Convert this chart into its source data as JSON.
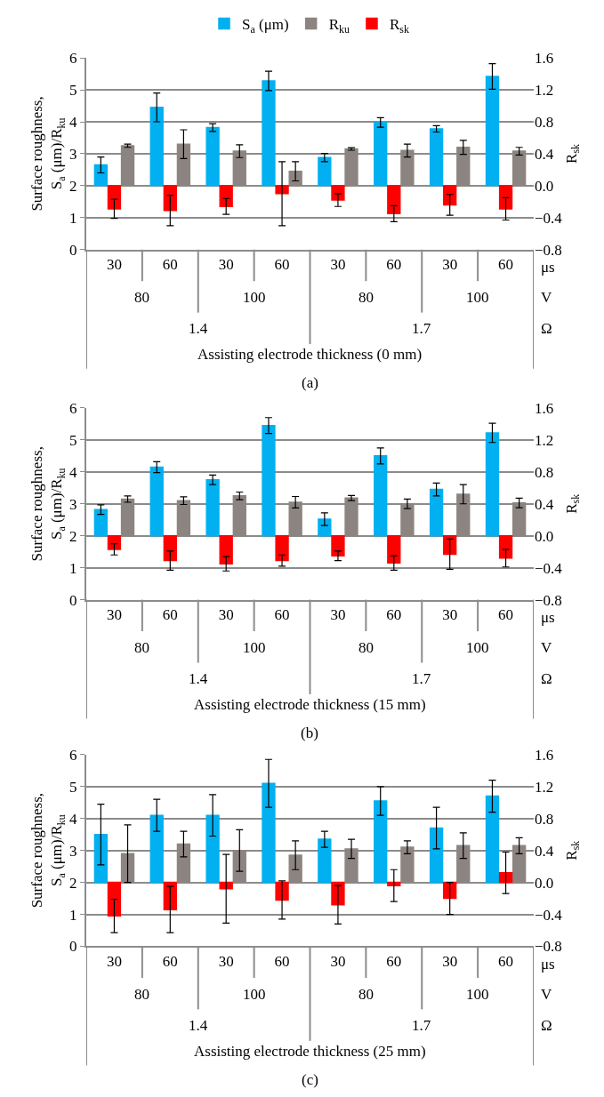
{
  "chart_data": [
    {
      "type": "bar",
      "legend": "top",
      "grid": "y",
      "xlabel": "Assisting electrode thickness (0 mm)",
      "ylabel": "Surface roughness,\nS$_{a}$ (μm)/R$_{ku}$",
      "y2label": "R$_{sk}$",
      "categories": [
        "30",
        "60",
        "30",
        "60",
        "30",
        "60",
        "30",
        "60"
      ],
      "ylim": [
        0,
        6
      ],
      "yticks": [
        0,
        1,
        2,
        3,
        4,
        5,
        6
      ],
      "y2lim": [
        -0.8,
        1.6
      ],
      "y2ticks": [
        {
          "value": -0.8,
          "label": "−0.8"
        },
        {
          "value": -0.4,
          "label": "−0.4"
        },
        {
          "value": 0,
          "label": "0.0"
        },
        0.4,
        0.8,
        1.2,
        1.6
      ],
      "series": [
        {
          "name": "S$_{a}$ (μm)",
          "color": "#00b0f0",
          "base": [
            2,
            2,
            2,
            2,
            2,
            2,
            2,
            2
          ],
          "values": [
            0.65,
            2.45,
            1.82,
            3.28,
            0.88,
            1.98,
            1.78,
            3.42
          ],
          "errors": [
            0.25,
            0.45,
            0.12,
            0.3,
            0.13,
            0.15,
            0.1,
            0.4
          ]
        },
        {
          "name": "R$_{ku}$",
          "color": "#8c8480",
          "base": [
            2,
            2,
            2,
            2,
            2,
            2,
            2,
            2
          ],
          "values": [
            1.25,
            1.3,
            1.08,
            0.45,
            1.15,
            1.1,
            1.2,
            1.08
          ],
          "errors": [
            0.05,
            0.45,
            0.2,
            0.3,
            0.04,
            0.2,
            0.22,
            0.12
          ]
        },
        {
          "name": "R$_{sk}$",
          "color": "#ff0000",
          "axis": "y2",
          "values": [
            -0.29,
            -0.31,
            -0.26,
            -0.1,
            -0.18,
            -0.35,
            -0.24,
            -0.29
          ],
          "errors": [
            0.12,
            0.19,
            0.1,
            0.4,
            0.08,
            0.1,
            0.13,
            0.14
          ]
        }
      ],
      "annotations": [
        "80",
        "100",
        "80",
        "100",
        "1.4",
        "1.7",
        "μs",
        "V",
        "Ω",
        "(a)"
      ]
    },
    {
      "type": "bar",
      "grid": "y",
      "xlabel": "Assisting electrode thickness (15 mm)",
      "ylabel": "Surface roughness,\nS$_{a}$ (μm)/R$_{ku}$",
      "y2label": "R$_{sk}$",
      "categories": [
        "30",
        "60",
        "30",
        "60",
        "30",
        "60",
        "30",
        "60"
      ],
      "ylim": [
        0,
        6
      ],
      "yticks": [
        0,
        1,
        2,
        3,
        4,
        5,
        6
      ],
      "y2lim": [
        -0.8,
        1.6
      ],
      "y2ticks": [
        {
          "value": -0.8,
          "label": "−0.8"
        },
        {
          "value": -0.4,
          "label": "−0.4"
        },
        {
          "value": 0,
          "label": "0.0"
        },
        0.4,
        0.8,
        1.2,
        1.6
      ],
      "series": [
        {
          "color": "#00b0f0",
          "base": [
            2,
            2,
            2,
            2,
            2,
            2,
            2,
            2
          ],
          "values": [
            0.82,
            2.15,
            1.75,
            3.45,
            0.52,
            2.5,
            1.45,
            3.22
          ],
          "errors": [
            0.15,
            0.17,
            0.15,
            0.25,
            0.2,
            0.25,
            0.2,
            0.3
          ]
        },
        {
          "color": "#8c8480",
          "base": [
            2,
            2,
            2,
            2,
            2,
            2,
            2,
            2
          ],
          "values": [
            1.15,
            1.1,
            1.25,
            1.05,
            1.18,
            1.0,
            1.3,
            1.03
          ],
          "errors": [
            0.1,
            0.12,
            0.12,
            0.18,
            0.08,
            0.15,
            0.3,
            0.15
          ]
        },
        {
          "color": "#ff0000",
          "axis": "y2",
          "values": [
            -0.17,
            -0.31,
            -0.35,
            -0.31,
            -0.25,
            -0.34,
            -0.23,
            -0.28
          ],
          "errors": [
            0.07,
            0.12,
            0.09,
            0.07,
            0.06,
            0.09,
            0.19,
            0.11
          ]
        }
      ],
      "annotations": [
        "80",
        "100",
        "80",
        "100",
        "1.4",
        "1.7",
        "μs",
        "V",
        "Ω",
        "(b)"
      ]
    },
    {
      "type": "bar",
      "grid": "y",
      "xlabel": "Assisting electrode thickness (25 mm)",
      "ylabel": "Surface roughness,\nS$_{a}$ (μm)/R$_{ku}$",
      "y2label": "R$_{sk}$",
      "categories": [
        "30",
        "60",
        "30",
        "60",
        "30",
        "60",
        "30",
        "60"
      ],
      "ylim": [
        0,
        6
      ],
      "yticks": [
        0,
        1,
        2,
        3,
        4,
        5,
        6
      ],
      "y2lim": [
        -0.8,
        1.6
      ],
      "y2ticks": [
        {
          "value": -0.8,
          "label": "−0.8"
        },
        {
          "value": -0.4,
          "label": "−0.4"
        },
        {
          "value": 0,
          "label": "0.0"
        },
        0.4,
        0.8,
        1.2,
        1.6
      ],
      "series": [
        {
          "color": "#00b0f0",
          "base": [
            2,
            2,
            2,
            2,
            2,
            2,
            2,
            2
          ],
          "values": [
            1.5,
            2.1,
            2.1,
            3.1,
            1.35,
            2.55,
            1.7,
            2.7
          ],
          "errors": [
            0.95,
            0.5,
            0.65,
            0.75,
            0.25,
            0.45,
            0.65,
            0.5
          ]
        },
        {
          "color": "#8c8480",
          "base": [
            2,
            2,
            2,
            2,
            2,
            2,
            2,
            2
          ],
          "values": [
            0.9,
            1.2,
            1.0,
            0.85,
            1.05,
            1.1,
            1.15,
            1.15
          ],
          "errors": [
            0.9,
            0.4,
            0.65,
            0.45,
            0.3,
            0.2,
            0.4,
            0.25
          ]
        },
        {
          "color": "#ff0000",
          "axis": "y2",
          "values": [
            -0.42,
            -0.34,
            -0.08,
            -0.22,
            -0.28,
            -0.04,
            -0.2,
            0.12
          ],
          "errors": [
            0.21,
            0.29,
            0.43,
            0.24,
            0.24,
            0.2,
            0.2,
            0.26
          ]
        }
      ],
      "annotations": [
        "80",
        "100",
        "80",
        "100",
        "1.4",
        "1.7",
        "μs",
        "V",
        "Ω",
        "(c)"
      ]
    }
  ]
}
